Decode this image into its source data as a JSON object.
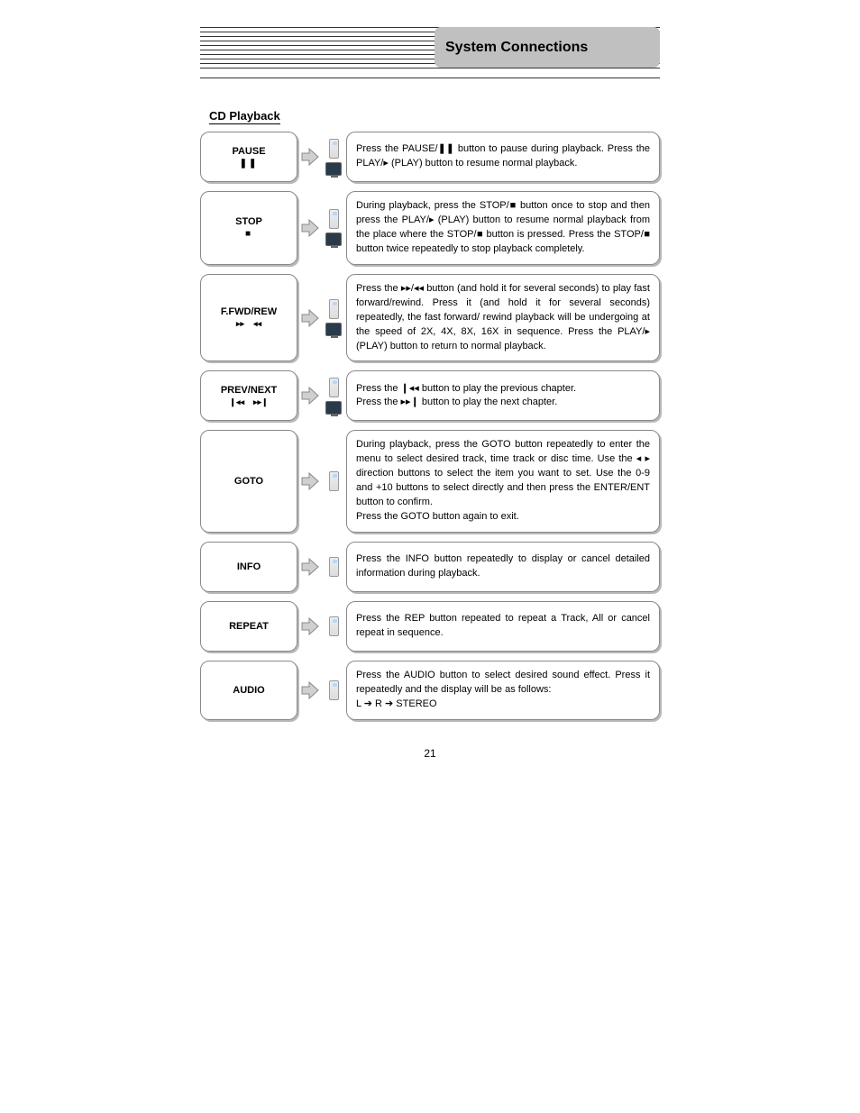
{
  "header": {
    "tab": "System Connections"
  },
  "section_title": "CD Playback",
  "page_number": "21",
  "rows": [
    {
      "button": {
        "label": "PAUSE",
        "symbol": "❚❚"
      },
      "show_remote": true,
      "show_tv": true,
      "desc_html": "Press the PAUSE/<span class='glyph'>❚❚</span> button to pause during playback. Press the PLAY/<span class='glyph'>▸</span> (PLAY) button to resume normal playback."
    },
    {
      "button": {
        "label": "STOP",
        "symbol": "■"
      },
      "show_remote": true,
      "show_tv": true,
      "desc_html": "During playback, press the STOP/<span class='glyph'>■</span> button once to stop and then press the PLAY/<span class='glyph'>▸</span> (PLAY) button to resume normal playback from the place where the STOP/<span class='glyph'>■</span> button is pressed. Press the STOP/<span class='glyph'>■</span> button twice repeatedly to stop playback completely."
    },
    {
      "button": {
        "label": "F.FWD/REW",
        "icons": [
          "▸▸",
          "◂◂"
        ]
      },
      "show_remote": true,
      "show_tv": true,
      "desc_html": "Press the <span class='glyph'>▸▸</span>/<span class='glyph'>◂◂</span> button (and hold it for several seconds) to play fast forward/rewind. Press it (and hold it for several seconds) repeatedly, the fast forward/ rewind playback will be undergoing at the speed of 2X, 4X, 8X, 16X in sequence. Press the PLAY/<span class='glyph'>▸</span> (PLAY) button to return to normal playback."
    },
    {
      "button": {
        "label": "PREV/NEXT",
        "icons": [
          "❙◂◂",
          "▸▸❙"
        ]
      },
      "show_remote": true,
      "show_tv": true,
      "desc_html": "Press the <span class='glyph'>❙◂◂</span> button to play the previous chapter.<br>Press the <span class='glyph'>▸▸❙</span> button to play the next chapter."
    },
    {
      "button": {
        "label": "GOTO"
      },
      "show_remote": true,
      "show_tv": false,
      "desc_html": "During playback, press the GOTO button repeatedly to enter the menu to select desired track, time track or disc time. Use the <span class='glyph'>◂ ▸</span> direction buttons to select the item you want to set. Use the 0-9 and +10 buttons to select directly and then press the ENTER/ENT button to confirm.<br>Press the GOTO button again to exit."
    },
    {
      "button": {
        "label": "INFO"
      },
      "show_remote": true,
      "show_tv": false,
      "desc_html": "Press the INFO button repeatedly to display or cancel detailed information during playback."
    },
    {
      "button": {
        "label": "REPEAT"
      },
      "show_remote": true,
      "show_tv": false,
      "desc_html": "Press the REP button repeated to repeat a Track, All or cancel repeat in sequence."
    },
    {
      "button": {
        "label": "AUDIO"
      },
      "show_remote": true,
      "show_tv": false,
      "desc_html": "Press the AUDIO button to select desired sound effect. Press it repeatedly and the display will be as follows:<br>L ➔ R ➔ STEREO"
    }
  ]
}
